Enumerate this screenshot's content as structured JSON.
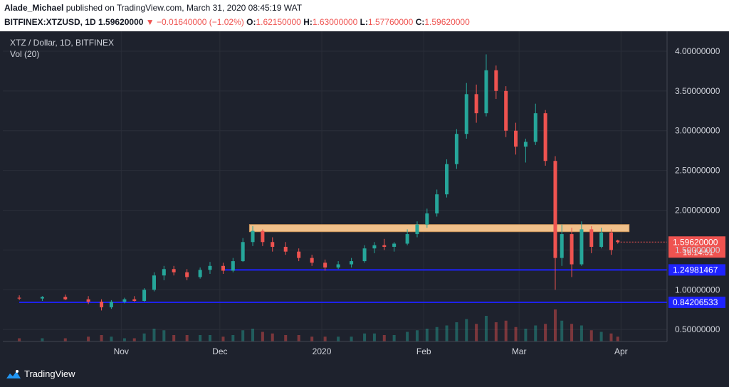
{
  "header": {
    "author": "Alade_Michael",
    "published_text": "published on TradingView.com, March 31, 2020 08:45:19 WAT",
    "symbol": "BITFINEX:XTZUSD, 1D",
    "last": "1.59620000",
    "change": "−0.01640000 (−1.02%)",
    "open_label": "O:",
    "open": "1.62150000",
    "high_label": "H:",
    "high": "1.63000000",
    "low_label": "L:",
    "low": "1.57760000",
    "close_label": "C:",
    "close": "1.59620000"
  },
  "legend": {
    "title": "XTZ / Dollar, 1D, BITFINEX",
    "volume": "Vol (20)"
  },
  "footer": {
    "brand": "TradingView"
  },
  "colors": {
    "up": "#26a69a",
    "down": "#ef5350",
    "zone": "#f0c08a",
    "level": "#1e22ff",
    "bg": "#1e222d",
    "grid": "#2a2e39",
    "text": "#d1d4dc"
  },
  "chart_data": {
    "type": "candlestick",
    "x_ticks": [
      "Nov",
      "Dec",
      "2020",
      "Feb",
      "Mar",
      "Apr"
    ],
    "y_ticks": [
      "4.00000000",
      "3.50000000",
      "3.00000000",
      "2.50000000",
      "2.00000000",
      "1.50000000",
      "1.00000000",
      "0.50000000"
    ],
    "ylim": [
      0.35,
      4.25
    ],
    "price_label": "1.59620000",
    "countdown": "16:14:51",
    "levels": [
      {
        "value": 1.24981467,
        "label": "1.24981467",
        "from": "2019-12-02"
      },
      {
        "value": 0.84206533,
        "label": "0.84206533",
        "from": "2019-10-01"
      }
    ],
    "resistance_zone": {
      "low": 1.73,
      "high": 1.82,
      "from": "2019-12-10",
      "to": "2020-03-31"
    },
    "ohlc": [
      {
        "d": "2019-10-01",
        "o": 0.9,
        "h": 0.93,
        "l": 0.87,
        "c": 0.89,
        "v": 2
      },
      {
        "d": "2019-10-08",
        "o": 0.89,
        "h": 0.92,
        "l": 0.86,
        "c": 0.91,
        "v": 2
      },
      {
        "d": "2019-10-15",
        "o": 0.91,
        "h": 0.94,
        "l": 0.87,
        "c": 0.88,
        "v": 2
      },
      {
        "d": "2019-10-22",
        "o": 0.88,
        "h": 0.92,
        "l": 0.82,
        "c": 0.85,
        "v": 3
      },
      {
        "d": "2019-10-26",
        "o": 0.85,
        "h": 0.88,
        "l": 0.74,
        "c": 0.78,
        "v": 4
      },
      {
        "d": "2019-10-29",
        "o": 0.78,
        "h": 0.87,
        "l": 0.76,
        "c": 0.85,
        "v": 3
      },
      {
        "d": "2019-11-02",
        "o": 0.85,
        "h": 0.9,
        "l": 0.83,
        "c": 0.88,
        "v": 2
      },
      {
        "d": "2019-11-05",
        "o": 0.88,
        "h": 0.92,
        "l": 0.85,
        "c": 0.86,
        "v": 2
      },
      {
        "d": "2019-11-08",
        "o": 0.86,
        "h": 1.02,
        "l": 0.85,
        "c": 1.0,
        "v": 5
      },
      {
        "d": "2019-11-11",
        "o": 1.0,
        "h": 1.22,
        "l": 0.98,
        "c": 1.18,
        "v": 8
      },
      {
        "d": "2019-11-14",
        "o": 1.18,
        "h": 1.3,
        "l": 1.12,
        "c": 1.26,
        "v": 7
      },
      {
        "d": "2019-11-17",
        "o": 1.26,
        "h": 1.3,
        "l": 1.18,
        "c": 1.22,
        "v": 4
      },
      {
        "d": "2019-11-21",
        "o": 1.22,
        "h": 1.26,
        "l": 1.12,
        "c": 1.16,
        "v": 4
      },
      {
        "d": "2019-11-25",
        "o": 1.16,
        "h": 1.28,
        "l": 1.14,
        "c": 1.25,
        "v": 4
      },
      {
        "d": "2019-11-28",
        "o": 1.25,
        "h": 1.35,
        "l": 1.2,
        "c": 1.3,
        "v": 4
      },
      {
        "d": "2019-12-02",
        "o": 1.3,
        "h": 1.34,
        "l": 1.2,
        "c": 1.24,
        "v": 3
      },
      {
        "d": "2019-12-05",
        "o": 1.24,
        "h": 1.4,
        "l": 1.22,
        "c": 1.36,
        "v": 4
      },
      {
        "d": "2019-12-08",
        "o": 1.36,
        "h": 1.65,
        "l": 1.35,
        "c": 1.6,
        "v": 7
      },
      {
        "d": "2019-12-11",
        "o": 1.6,
        "h": 1.8,
        "l": 1.55,
        "c": 1.74,
        "v": 8
      },
      {
        "d": "2019-12-14",
        "o": 1.74,
        "h": 1.76,
        "l": 1.55,
        "c": 1.6,
        "v": 6
      },
      {
        "d": "2019-12-17",
        "o": 1.6,
        "h": 1.66,
        "l": 1.48,
        "c": 1.54,
        "v": 5
      },
      {
        "d": "2019-12-21",
        "o": 1.54,
        "h": 1.6,
        "l": 1.44,
        "c": 1.48,
        "v": 4
      },
      {
        "d": "2019-12-25",
        "o": 1.48,
        "h": 1.52,
        "l": 1.36,
        "c": 1.4,
        "v": 4
      },
      {
        "d": "2019-12-29",
        "o": 1.4,
        "h": 1.44,
        "l": 1.3,
        "c": 1.34,
        "v": 3
      },
      {
        "d": "2020-01-02",
        "o": 1.34,
        "h": 1.38,
        "l": 1.24,
        "c": 1.28,
        "v": 3
      },
      {
        "d": "2020-01-06",
        "o": 1.28,
        "h": 1.36,
        "l": 1.26,
        "c": 1.32,
        "v": 3
      },
      {
        "d": "2020-01-10",
        "o": 1.32,
        "h": 1.4,
        "l": 1.28,
        "c": 1.36,
        "v": 3
      },
      {
        "d": "2020-01-14",
        "o": 1.36,
        "h": 1.56,
        "l": 1.34,
        "c": 1.52,
        "v": 5
      },
      {
        "d": "2020-01-17",
        "o": 1.52,
        "h": 1.6,
        "l": 1.46,
        "c": 1.56,
        "v": 5
      },
      {
        "d": "2020-01-20",
        "o": 1.56,
        "h": 1.64,
        "l": 1.5,
        "c": 1.54,
        "v": 4
      },
      {
        "d": "2020-01-23",
        "o": 1.54,
        "h": 1.6,
        "l": 1.48,
        "c": 1.58,
        "v": 4
      },
      {
        "d": "2020-01-27",
        "o": 1.58,
        "h": 1.76,
        "l": 1.56,
        "c": 1.7,
        "v": 6
      },
      {
        "d": "2020-01-30",
        "o": 1.7,
        "h": 1.86,
        "l": 1.66,
        "c": 1.82,
        "v": 7
      },
      {
        "d": "2020-02-02",
        "o": 1.82,
        "h": 2.02,
        "l": 1.78,
        "c": 1.96,
        "v": 8
      },
      {
        "d": "2020-02-05",
        "o": 1.96,
        "h": 2.26,
        "l": 1.92,
        "c": 2.2,
        "v": 9
      },
      {
        "d": "2020-02-08",
        "o": 2.2,
        "h": 2.64,
        "l": 2.16,
        "c": 2.58,
        "v": 10
      },
      {
        "d": "2020-02-11",
        "o": 2.58,
        "h": 3.02,
        "l": 2.52,
        "c": 2.96,
        "v": 12
      },
      {
        "d": "2020-02-14",
        "o": 2.96,
        "h": 3.6,
        "l": 2.9,
        "c": 3.46,
        "v": 14
      },
      {
        "d": "2020-02-17",
        "o": 3.46,
        "h": 3.58,
        "l": 3.1,
        "c": 3.22,
        "v": 11
      },
      {
        "d": "2020-02-20",
        "o": 3.22,
        "h": 3.96,
        "l": 3.18,
        "c": 3.76,
        "v": 16
      },
      {
        "d": "2020-02-23",
        "o": 3.76,
        "h": 3.82,
        "l": 3.4,
        "c": 3.5,
        "v": 12
      },
      {
        "d": "2020-02-26",
        "o": 3.5,
        "h": 3.56,
        "l": 2.92,
        "c": 3.0,
        "v": 13
      },
      {
        "d": "2020-02-29",
        "o": 3.0,
        "h": 3.1,
        "l": 2.7,
        "c": 2.8,
        "v": 9
      },
      {
        "d": "2020-03-03",
        "o": 2.8,
        "h": 2.9,
        "l": 2.6,
        "c": 2.86,
        "v": 8
      },
      {
        "d": "2020-03-06",
        "o": 2.86,
        "h": 3.34,
        "l": 2.82,
        "c": 3.22,
        "v": 10
      },
      {
        "d": "2020-03-09",
        "o": 3.22,
        "h": 3.26,
        "l": 2.56,
        "c": 2.62,
        "v": 11
      },
      {
        "d": "2020-03-12",
        "o": 2.62,
        "h": 2.68,
        "l": 1.0,
        "c": 1.4,
        "v": 20
      },
      {
        "d": "2020-03-14",
        "o": 1.4,
        "h": 1.82,
        "l": 1.3,
        "c": 1.7,
        "v": 13
      },
      {
        "d": "2020-03-17",
        "o": 1.7,
        "h": 1.78,
        "l": 1.16,
        "c": 1.32,
        "v": 11
      },
      {
        "d": "2020-03-20",
        "o": 1.32,
        "h": 1.86,
        "l": 1.3,
        "c": 1.76,
        "v": 10
      },
      {
        "d": "2020-03-23",
        "o": 1.76,
        "h": 1.8,
        "l": 1.46,
        "c": 1.54,
        "v": 7
      },
      {
        "d": "2020-03-26",
        "o": 1.54,
        "h": 1.78,
        "l": 1.52,
        "c": 1.72,
        "v": 6
      },
      {
        "d": "2020-03-29",
        "o": 1.72,
        "h": 1.76,
        "l": 1.44,
        "c": 1.5,
        "v": 5
      },
      {
        "d": "2020-03-31",
        "o": 1.62,
        "h": 1.63,
        "l": 1.58,
        "c": 1.6,
        "v": 3
      }
    ]
  }
}
